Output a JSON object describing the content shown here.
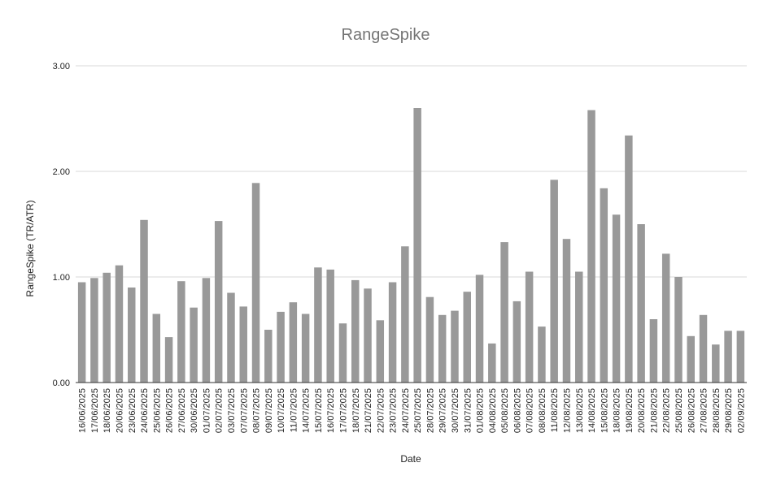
{
  "chart_data": {
    "type": "bar",
    "title": "RangeSpike",
    "xlabel": "Date",
    "ylabel": "RangeSpike (TR/ATR)",
    "ylim": [
      0,
      3
    ],
    "yticks": [
      "0.00",
      "1.00",
      "2.00",
      "3.00"
    ],
    "grid": true,
    "legend": "none",
    "bar_color": "#999999",
    "categories": [
      "16/06/2025",
      "17/06/2025",
      "18/06/2025",
      "20/06/2025",
      "23/06/2025",
      "24/06/2025",
      "25/06/2025",
      "26/06/2025",
      "27/06/2025",
      "30/06/2025",
      "01/07/2025",
      "02/07/2025",
      "03/07/2025",
      "07/07/2025",
      "08/07/2025",
      "09/07/2025",
      "10/07/2025",
      "11/07/2025",
      "14/07/2025",
      "15/07/2025",
      "16/07/2025",
      "17/07/2025",
      "18/07/2025",
      "21/07/2025",
      "22/07/2025",
      "23/07/2025",
      "24/07/2025",
      "25/07/2025",
      "28/07/2025",
      "29/07/2025",
      "30/07/2025",
      "31/07/2025",
      "01/08/2025",
      "04/08/2025",
      "05/08/2025",
      "06/08/2025",
      "07/08/2025",
      "08/08/2025",
      "11/08/2025",
      "12/08/2025",
      "13/08/2025",
      "14/08/2025",
      "15/08/2025",
      "18/08/2025",
      "19/08/2025",
      "20/08/2025",
      "21/08/2025",
      "22/08/2025",
      "25/08/2025",
      "26/08/2025",
      "27/08/2025",
      "28/08/2025",
      "29/08/2025",
      "02/09/2025"
    ],
    "values": [
      0.95,
      0.99,
      1.04,
      1.11,
      0.9,
      1.54,
      0.65,
      0.43,
      0.96,
      0.71,
      0.99,
      1.53,
      0.85,
      0.72,
      1.89,
      0.5,
      0.67,
      0.76,
      0.65,
      1.09,
      1.07,
      0.56,
      0.97,
      0.89,
      0.59,
      0.95,
      1.29,
      2.6,
      0.81,
      0.64,
      0.68,
      0.86,
      1.02,
      0.37,
      1.33,
      0.77,
      1.05,
      0.53,
      1.92,
      1.36,
      1.05,
      2.58,
      1.84,
      1.59,
      2.34,
      1.5,
      0.6,
      1.22,
      1.0,
      0.44,
      0.64,
      0.36,
      0.49,
      0.49
    ]
  }
}
